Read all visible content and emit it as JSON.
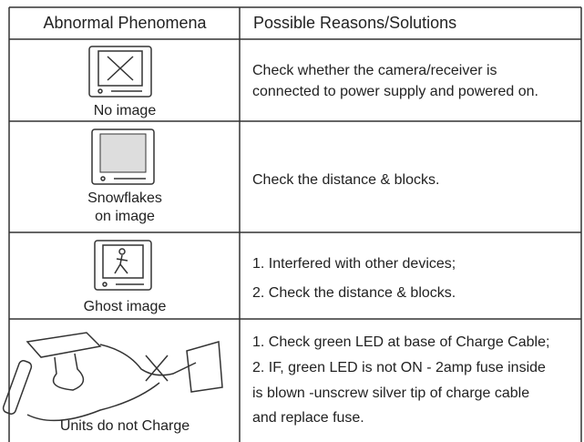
{
  "table": {
    "header": [
      "Abnormal Phenomena",
      "Possible Reasons/Solutions"
    ],
    "rows": [
      {
        "phenomenon": [
          "No image"
        ],
        "solution": [
          "Check whether the camera/receiver is",
          "connected to power supply and powered on."
        ]
      },
      {
        "phenomenon": [
          "Snowflakes",
          "on image"
        ],
        "solution": [
          "Check the distance & blocks."
        ]
      },
      {
        "phenomenon": [
          "Ghost image"
        ],
        "solution": [
          "1. Interfered with other devices;",
          "2. Check the distance & blocks."
        ]
      },
      {
        "phenomenon": [
          "Units do not Charge"
        ],
        "solution": [
          "1. Check green LED at base of Charge Cable;",
          "2. IF, green LED is not ON - 2amp fuse inside",
          "is  blown -unscrew silver tip of charge cable",
          "and replace fuse."
        ]
      }
    ]
  }
}
